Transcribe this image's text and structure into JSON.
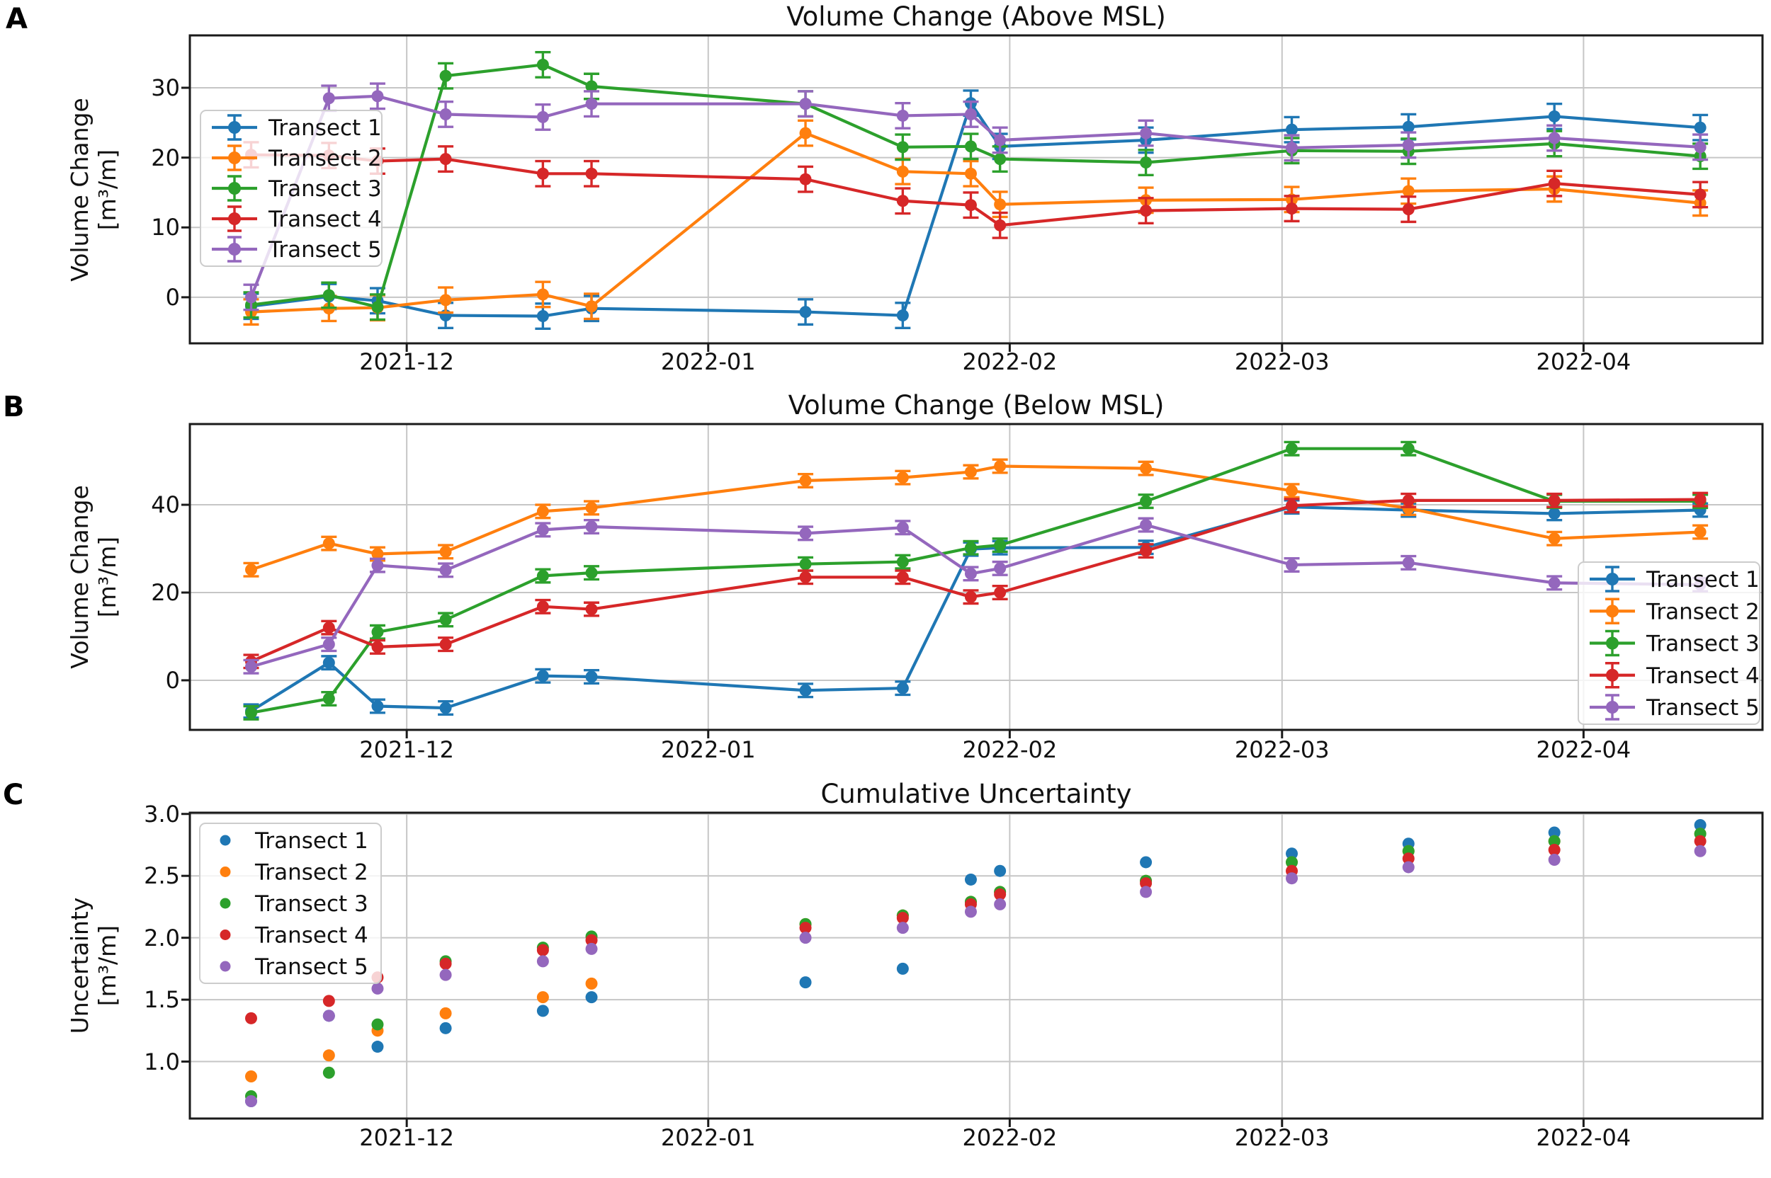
{
  "figure": {
    "panel_labels": [
      "A",
      "B",
      "C"
    ]
  },
  "colors": {
    "transect1": "#1f77b4",
    "transect2": "#ff7f0e",
    "transect3": "#2ca02c",
    "transect4": "#d62728",
    "transect5": "#9467bd",
    "grid": "#c6c6c6",
    "spine": "#1a1a1a",
    "legend_border": "#cccccc",
    "legend_fill_alpha": 0.8
  },
  "chart_data": [
    {
      "id": "A",
      "type": "line",
      "title": "Volume Change (Above MSL)",
      "ylabel_line1": "Volume Change",
      "ylabel_line2": "[m³/m]",
      "x": [
        "2021-11-15",
        "2021-11-23",
        "2021-11-28",
        "2021-12-05",
        "2021-12-15",
        "2021-12-20",
        "2022-01-11",
        "2022-01-21",
        "2022-01-28",
        "2022-01-31",
        "2022-02-15",
        "2022-03-02",
        "2022-03-14",
        "2022-03-29",
        "2022-04-13"
      ],
      "xticks": [
        {
          "date": "2021-12-01",
          "label": "2021-12"
        },
        {
          "date": "2022-01-01",
          "label": "2022-01"
        },
        {
          "date": "2022-02-01",
          "label": "2022-02"
        },
        {
          "date": "2022-03-01",
          "label": "2022-03"
        },
        {
          "date": "2022-04-01",
          "label": "2022-04"
        }
      ],
      "yticks": [
        {
          "v": 0,
          "label": "0"
        },
        {
          "v": 10,
          "label": "10"
        },
        {
          "v": 20,
          "label": "20"
        },
        {
          "v": 30,
          "label": "30"
        }
      ],
      "ylim": [
        -6.6,
        37.5
      ],
      "grid": true,
      "err": 1.8,
      "legend_position": "upper-left",
      "series": [
        {
          "name": "Transect 1",
          "color": "#1f77b4",
          "values": [
            -1.3,
            0.1,
            -0.5,
            -2.6,
            -2.7,
            -1.6,
            -2.1,
            -2.6,
            27.8,
            21.6,
            22.5,
            24.0,
            24.4,
            25.9,
            24.3
          ]
        },
        {
          "name": "Transect 2",
          "color": "#ff7f0e",
          "values": [
            -2.1,
            -1.6,
            -1.5,
            -0.4,
            0.4,
            -1.3,
            23.5,
            18.0,
            17.7,
            13.3,
            13.9,
            14.0,
            15.2,
            15.5,
            13.5
          ]
        },
        {
          "name": "Transect 3",
          "color": "#2ca02c",
          "values": [
            -1.1,
            0.3,
            -1.4,
            31.7,
            33.3,
            30.2,
            27.7,
            21.5,
            21.6,
            19.8,
            19.3,
            21.0,
            20.9,
            22.0,
            20.2
          ]
        },
        {
          "name": "Transect 4",
          "color": "#d62728",
          "values": [
            20.4,
            20.3,
            19.5,
            19.8,
            17.7,
            17.7,
            16.9,
            13.8,
            13.2,
            10.3,
            12.4,
            12.7,
            12.6,
            16.3,
            14.7
          ]
        },
        {
          "name": "Transect 5",
          "color": "#9467bd",
          "values": [
            0.0,
            28.5,
            28.8,
            26.2,
            25.8,
            27.7,
            27.7,
            26.0,
            26.2,
            22.5,
            23.5,
            21.4,
            21.8,
            22.8,
            21.5
          ]
        }
      ]
    },
    {
      "id": "B",
      "type": "line",
      "title": "Volume Change (Below MSL)",
      "ylabel_line1": "Volume Change",
      "ylabel_line2": "[m³/m]",
      "x": [
        "2021-11-15",
        "2021-11-23",
        "2021-11-28",
        "2021-12-05",
        "2021-12-15",
        "2021-12-20",
        "2022-01-11",
        "2022-01-21",
        "2022-01-28",
        "2022-01-31",
        "2022-02-15",
        "2022-03-02",
        "2022-03-14",
        "2022-03-29",
        "2022-04-13"
      ],
      "xticks": [
        {
          "date": "2021-12-01",
          "label": "2021-12"
        },
        {
          "date": "2022-01-01",
          "label": "2022-01"
        },
        {
          "date": "2022-02-01",
          "label": "2022-02"
        },
        {
          "date": "2022-03-01",
          "label": "2022-03"
        },
        {
          "date": "2022-04-01",
          "label": "2022-04"
        }
      ],
      "yticks": [
        {
          "v": 0,
          "label": "0"
        },
        {
          "v": 20,
          "label": "20"
        },
        {
          "v": 40,
          "label": "40"
        }
      ],
      "ylim": [
        -11.3,
        58.4
      ],
      "grid": true,
      "err": 1.5,
      "legend_position": "lower-right",
      "series": [
        {
          "name": "Transect 1",
          "color": "#1f77b4",
          "values": [
            -7.0,
            4.0,
            -5.9,
            -6.3,
            1.0,
            0.8,
            -2.3,
            -1.8,
            29.9,
            30.2,
            30.3,
            39.5,
            38.8,
            38.0,
            38.8
          ]
        },
        {
          "name": "Transect 2",
          "color": "#ff7f0e",
          "values": [
            25.2,
            31.2,
            28.8,
            29.3,
            38.5,
            39.3,
            45.5,
            46.2,
            47.5,
            48.8,
            48.3,
            43.2,
            39.2,
            32.3,
            33.8
          ]
        },
        {
          "name": "Transect 3",
          "color": "#2ca02c",
          "values": [
            -7.4,
            -4.2,
            11.0,
            13.8,
            23.8,
            24.5,
            26.5,
            27.0,
            30.2,
            30.8,
            40.8,
            52.8,
            52.8,
            40.8,
            40.8
          ]
        },
        {
          "name": "Transect 4",
          "color": "#d62728",
          "values": [
            4.3,
            12.0,
            7.6,
            8.2,
            16.8,
            16.2,
            23.5,
            23.5,
            19.0,
            20.0,
            29.5,
            39.8,
            41.0,
            41.0,
            41.2
          ]
        },
        {
          "name": "Transect 5",
          "color": "#9467bd",
          "values": [
            3.1,
            8.2,
            26.2,
            25.1,
            34.3,
            35.0,
            33.5,
            34.8,
            24.3,
            25.5,
            35.4,
            26.3,
            26.8,
            22.2,
            21.8
          ]
        }
      ]
    },
    {
      "id": "C",
      "type": "scatter",
      "title": "Cumulative Uncertainty",
      "ylabel_line1": "Uncertainty",
      "ylabel_line2": "[m³/m]",
      "x": [
        "2021-11-15",
        "2021-11-23",
        "2021-11-28",
        "2021-12-05",
        "2021-12-15",
        "2021-12-20",
        "2022-01-11",
        "2022-01-21",
        "2022-01-28",
        "2022-01-31",
        "2022-02-15",
        "2022-03-02",
        "2022-03-14",
        "2022-03-29",
        "2022-04-13"
      ],
      "xticks": [
        {
          "date": "2021-12-01",
          "label": "2021-12"
        },
        {
          "date": "2022-01-01",
          "label": "2022-01"
        },
        {
          "date": "2022-02-01",
          "label": "2022-02"
        },
        {
          "date": "2022-03-01",
          "label": "2022-03"
        },
        {
          "date": "2022-04-01",
          "label": "2022-04"
        }
      ],
      "yticks": [
        {
          "v": 1.0,
          "label": "1.0"
        },
        {
          "v": 1.5,
          "label": "1.5"
        },
        {
          "v": 2.0,
          "label": "2.0"
        },
        {
          "v": 2.5,
          "label": "2.5"
        },
        {
          "v": 3.0,
          "label": "3.0"
        }
      ],
      "ylim": [
        0.54,
        3.01
      ],
      "grid": true,
      "err": 0,
      "legend_position": "upper-left",
      "series": [
        {
          "name": "Transect 1",
          "color": "#1f77b4",
          "values": [
            0.68,
            1.37,
            1.12,
            1.27,
            1.41,
            1.52,
            1.64,
            1.75,
            2.47,
            2.54,
            2.61,
            2.68,
            2.76,
            2.85,
            2.91
          ]
        },
        {
          "name": "Transect 2",
          "color": "#ff7f0e",
          "values": [
            0.88,
            1.05,
            1.25,
            1.39,
            1.52,
            1.63,
            2.11,
            2.18,
            2.29,
            2.37,
            2.46,
            2.61,
            2.7,
            2.78,
            2.84
          ]
        },
        {
          "name": "Transect 3",
          "color": "#2ca02c",
          "values": [
            0.72,
            0.91,
            1.3,
            1.81,
            1.92,
            2.01,
            2.11,
            2.18,
            2.29,
            2.37,
            2.46,
            2.61,
            2.7,
            2.78,
            2.84
          ]
        },
        {
          "name": "Transect 4",
          "color": "#d62728",
          "values": [
            1.35,
            1.49,
            1.68,
            1.79,
            1.9,
            1.98,
            2.08,
            2.16,
            2.27,
            2.35,
            2.44,
            2.54,
            2.64,
            2.71,
            2.78
          ]
        },
        {
          "name": "Transect 5",
          "color": "#9467bd",
          "values": [
            0.68,
            1.37,
            1.59,
            1.7,
            1.81,
            1.91,
            2.0,
            2.08,
            2.21,
            2.27,
            2.37,
            2.48,
            2.57,
            2.63,
            2.7
          ]
        }
      ]
    }
  ]
}
